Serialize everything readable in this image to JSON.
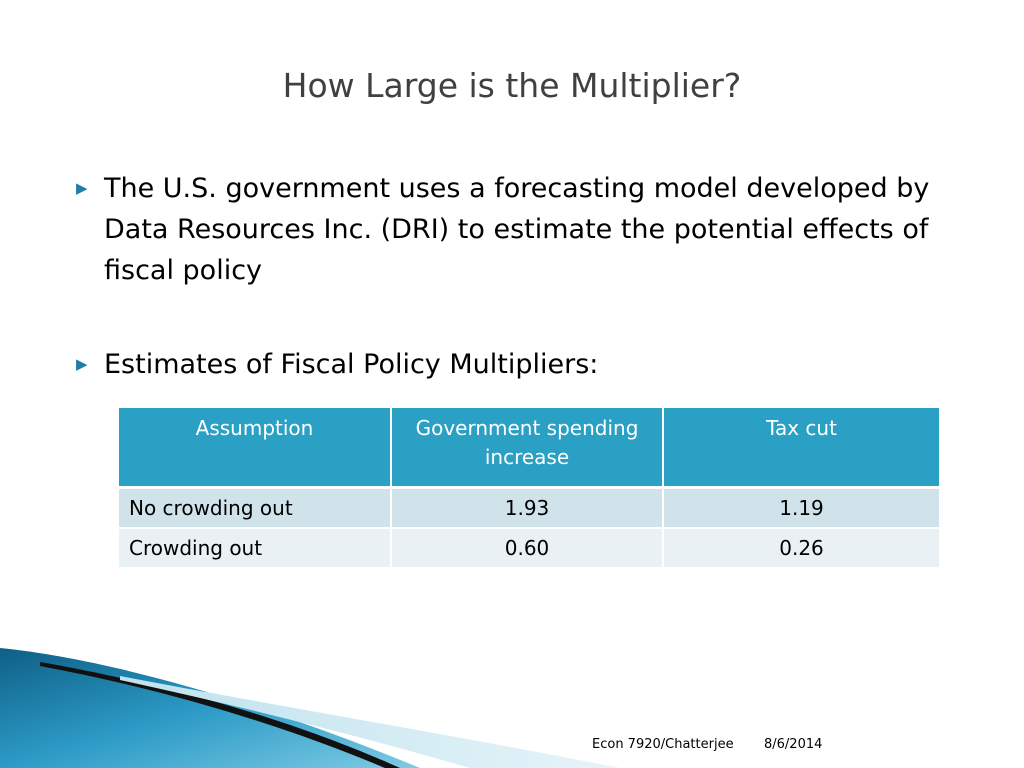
{
  "slide": {
    "title": "How Large is the Multiplier?"
  },
  "bullets": [
    {
      "marker": "▶",
      "text": "The U.S. government uses a forecasting model developed by Data Resources Inc. (DRI) to estimate the potential effects of fiscal policy"
    },
    {
      "marker": "▶",
      "text": "Estimates of Fiscal Policy Multipliers:"
    }
  ],
  "table": {
    "headers": [
      "Assumption",
      "Government spending increase",
      "Tax cut"
    ],
    "rows": [
      [
        "No crowding out",
        "1.93",
        "1.19"
      ],
      [
        "Crowding out",
        "0.60",
        "0.26"
      ]
    ]
  },
  "footer": {
    "source": "Econ 7920/Chatterjee",
    "date": "8/6/2014"
  },
  "colors": {
    "header_fill": "#2aa0c4",
    "row_odd": "#d0e3ea",
    "row_even": "#e9f1f5",
    "title_text": "#404040",
    "bullet_marker": "#1f7fa8"
  }
}
